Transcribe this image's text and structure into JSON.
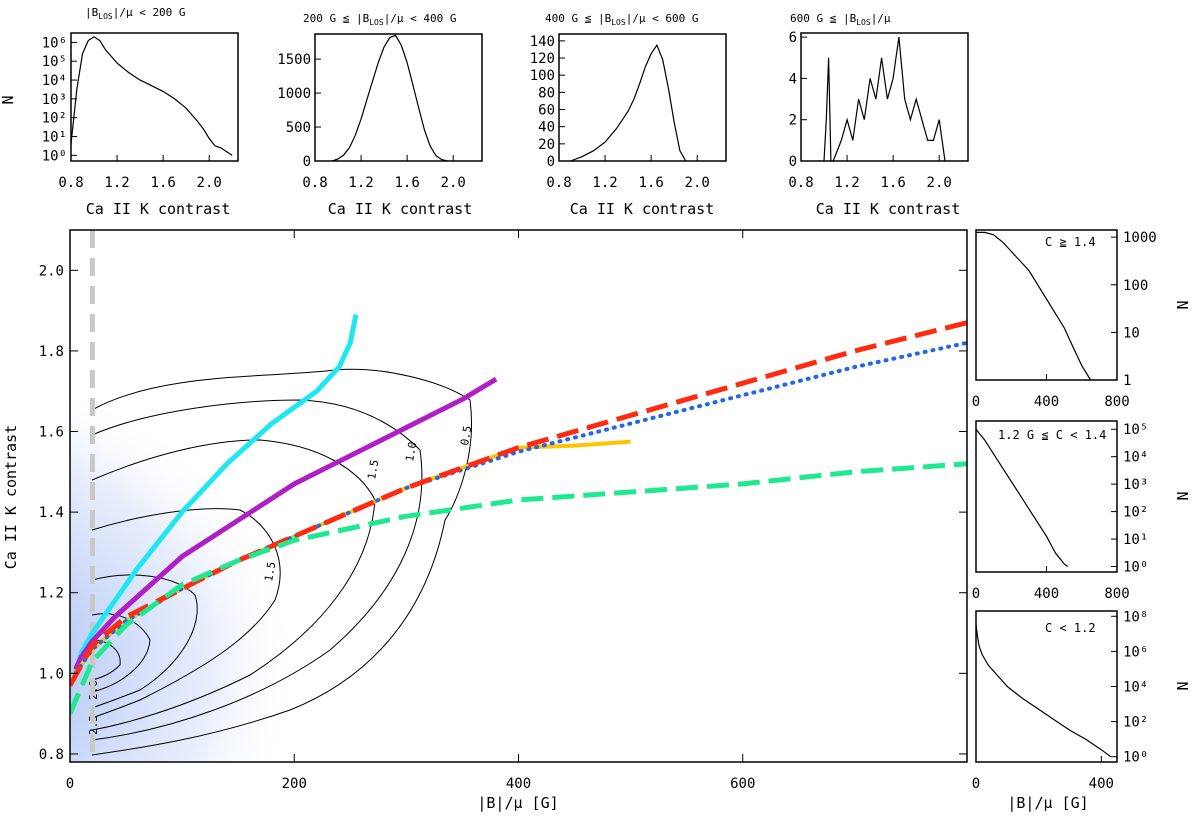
{
  "figure": {
    "top_panels": [
      {
        "title": "|B_LOS|/μ < 200 G",
        "title_parts": {
          "a": "|B",
          "sub": "LOS",
          "b": "|/μ < 200 G"
        },
        "xlabel": "Ca II K contrast",
        "ylabel": "N",
        "xlim": [
          0.8,
          2.25
        ],
        "xticks": [
          "0.8",
          "1.2",
          "1.6",
          "2.0"
        ],
        "yscale": "log",
        "yticks": [
          "10⁰",
          "10¹",
          "10²",
          "10³",
          "10⁴",
          "10⁵",
          "10⁶"
        ],
        "ylim_log": [
          -0.3,
          6.5
        ],
        "series": {
          "x": [
            0.8,
            0.85,
            0.9,
            0.95,
            1.0,
            1.05,
            1.1,
            1.2,
            1.3,
            1.4,
            1.5,
            1.6,
            1.7,
            1.8,
            1.9,
            1.95,
            2.0,
            2.05,
            2.1,
            2.15,
            2.2
          ],
          "log_n": [
            0.6,
            3.5,
            5.4,
            6.1,
            6.3,
            6.1,
            5.6,
            4.9,
            4.4,
            4.0,
            3.7,
            3.4,
            3.0,
            2.5,
            1.8,
            1.4,
            0.9,
            0.5,
            0.4,
            0.2,
            0.0
          ]
        }
      },
      {
        "title": "200 G ≤ |B_LOS|/μ < 400 G",
        "title_parts": {
          "a": "200 G ≦ |B",
          "sub": "LOS",
          "b": "|/μ < 400 G"
        },
        "xlabel": "Ca II K contrast",
        "xlim": [
          0.8,
          2.25
        ],
        "xticks": [
          "0.8",
          "1.2",
          "1.6",
          "2.0"
        ],
        "yscale": "linear",
        "yticks": [
          "0",
          "500",
          "1000",
          "1500"
        ],
        "ylim": [
          0,
          1870
        ],
        "series": {
          "x": [
            0.95,
            1.0,
            1.05,
            1.1,
            1.15,
            1.2,
            1.25,
            1.3,
            1.35,
            1.4,
            1.45,
            1.5,
            1.55,
            1.6,
            1.65,
            1.7,
            1.75,
            1.8,
            1.85,
            1.9,
            1.95
          ],
          "n": [
            0,
            30,
            90,
            200,
            380,
            620,
            900,
            1180,
            1450,
            1680,
            1820,
            1850,
            1700,
            1450,
            1120,
            780,
            460,
            220,
            80,
            20,
            0
          ]
        }
      },
      {
        "title": "400 G ≤ |B_LOS|/μ < 600 G",
        "title_parts": {
          "a": "400 G ≦ |B",
          "sub": "LOS",
          "b": "|/μ < 600 G"
        },
        "xlabel": "Ca II K contrast",
        "xlim": [
          0.8,
          2.25
        ],
        "xticks": [
          "0.8",
          "1.2",
          "1.6",
          "2.0"
        ],
        "yscale": "linear",
        "yticks": [
          "0",
          "20",
          "40",
          "60",
          "80",
          "100",
          "120",
          "140"
        ],
        "ylim": [
          0,
          148
        ],
        "series": {
          "x": [
            0.9,
            1.0,
            1.1,
            1.2,
            1.25,
            1.3,
            1.35,
            1.4,
            1.45,
            1.5,
            1.55,
            1.6,
            1.65,
            1.7,
            1.75,
            1.8,
            1.85,
            1.9
          ],
          "n": [
            0,
            5,
            12,
            22,
            30,
            38,
            48,
            58,
            72,
            90,
            110,
            125,
            135,
            118,
            85,
            45,
            12,
            0
          ]
        }
      },
      {
        "title": "600 G ≤ |B_LOS|/μ",
        "title_parts": {
          "a": "600 G ≦ |B",
          "sub": "LOS",
          "b": "|/μ"
        },
        "xlabel": "Ca II K contrast",
        "xlim": [
          0.8,
          2.25
        ],
        "xticks": [
          "0.8",
          "1.2",
          "1.6",
          "2.0"
        ],
        "yscale": "linear",
        "yticks": [
          "0",
          "2",
          "4",
          "6"
        ],
        "ylim": [
          0,
          6.2
        ],
        "series": {
          "x": [
            1.0,
            1.02,
            1.04,
            1.06,
            1.08,
            1.15,
            1.2,
            1.25,
            1.3,
            1.35,
            1.4,
            1.45,
            1.5,
            1.55,
            1.6,
            1.65,
            1.7,
            1.75,
            1.8,
            1.85,
            1.9,
            1.95,
            2.0,
            2.05
          ],
          "n": [
            0,
            2,
            5,
            0,
            0,
            1,
            2,
            1,
            3,
            2,
            4,
            3,
            5,
            3,
            4,
            6,
            3,
            2,
            3,
            2,
            1,
            1,
            2,
            0
          ]
        }
      }
    ],
    "main": {
      "xlabel": "|B|/μ [G]",
      "ylabel": "Ca II K contrast",
      "xlim": [
        0,
        800
      ],
      "ylim": [
        0.78,
        2.1
      ],
      "xticks": [
        "0",
        "200",
        "400",
        "600"
      ],
      "yticks": [
        "0.8",
        "1.0",
        "1.2",
        "1.4",
        "1.6",
        "1.8",
        "2.0"
      ],
      "vline_x": 20,
      "contour_labels": [
        "1.5",
        "1.5",
        "1.0",
        "0.5",
        "2.0",
        "2.5"
      ],
      "series": [
        {
          "name": "cyan",
          "color": "#1ee6f2",
          "dash": "solid",
          "width": 5,
          "x": [
            5,
            10,
            20,
            40,
            60,
            80,
            100,
            120,
            140,
            160,
            180,
            200,
            220,
            240,
            250,
            255
          ],
          "y": [
            1.0,
            1.05,
            1.1,
            1.18,
            1.26,
            1.33,
            1.4,
            1.46,
            1.52,
            1.57,
            1.62,
            1.66,
            1.7,
            1.76,
            1.82,
            1.89
          ]
        },
        {
          "name": "magenta",
          "color": "#b01fc4",
          "dash": "solid",
          "width": 5,
          "x": [
            5,
            10,
            20,
            40,
            60,
            80,
            100,
            150,
            200,
            250,
            300,
            350,
            380
          ],
          "y": [
            1.01,
            1.04,
            1.08,
            1.14,
            1.19,
            1.24,
            1.29,
            1.38,
            1.47,
            1.54,
            1.61,
            1.68,
            1.73
          ]
        },
        {
          "name": "yellow",
          "color": "#ffc400",
          "dash": "solid",
          "width": 4,
          "x": [
            5,
            20,
            50,
            100,
            150,
            200,
            250,
            300,
            350,
            380,
            400,
            450,
            500
          ],
          "y": [
            1.0,
            1.06,
            1.13,
            1.21,
            1.28,
            1.34,
            1.4,
            1.46,
            1.51,
            1.54,
            1.56,
            1.565,
            1.575
          ]
        },
        {
          "name": "blue-dotted",
          "color": "#2266ee",
          "dash": "dotted",
          "width": 4,
          "x": [
            5,
            20,
            50,
            100,
            150,
            200,
            300,
            400,
            500,
            600,
            700,
            800
          ],
          "y": [
            1.0,
            1.06,
            1.13,
            1.21,
            1.28,
            1.34,
            1.46,
            1.55,
            1.62,
            1.69,
            1.76,
            1.82
          ]
        },
        {
          "name": "red-dashed",
          "color": "#ff2a10",
          "dash": "dashed",
          "width": 5,
          "x": [
            0,
            20,
            50,
            100,
            150,
            200,
            300,
            400,
            500,
            600,
            700,
            800
          ],
          "y": [
            0.97,
            1.07,
            1.14,
            1.21,
            1.28,
            1.34,
            1.46,
            1.56,
            1.64,
            1.72,
            1.8,
            1.87
          ]
        },
        {
          "name": "green-dashed",
          "color": "#1ee890",
          "dash": "dashed",
          "width": 5,
          "x": [
            0,
            20,
            50,
            100,
            150,
            200,
            300,
            400,
            500,
            600,
            700,
            800
          ],
          "y": [
            0.9,
            1.03,
            1.12,
            1.22,
            1.28,
            1.33,
            1.39,
            1.43,
            1.45,
            1.47,
            1.5,
            1.52
          ]
        }
      ]
    },
    "side_panels": [
      {
        "label": "C ≧ 1.4",
        "ylabel": "N",
        "xlim": [
          0,
          800
        ],
        "xticks": [
          "0",
          "400",
          "800"
        ],
        "yscale": "log",
        "yticks": [
          "1",
          "10",
          "100",
          "1000"
        ],
        "ylim_log": [
          0,
          3.15
        ],
        "series": {
          "x": [
            0,
            50,
            100,
            150,
            200,
            250,
            300,
            350,
            400,
            450,
            500,
            550,
            600,
            650
          ],
          "log_n": [
            3.1,
            3.1,
            3.05,
            2.9,
            2.7,
            2.5,
            2.3,
            2.0,
            1.7,
            1.4,
            1.1,
            0.7,
            0.3,
            0.0
          ]
        }
      },
      {
        "label": "1.2 G ≦ C < 1.4",
        "ylabel": "N",
        "xlim": [
          0,
          800
        ],
        "xticks": [
          "0",
          "400",
          "800"
        ],
        "yscale": "log",
        "yticks": [
          "10⁰",
          "10¹",
          "10²",
          "10³",
          "10⁴",
          "10⁵"
        ],
        "ylim_log": [
          -0.2,
          5.3
        ],
        "series": {
          "x": [
            0,
            25,
            50,
            100,
            150,
            200,
            250,
            300,
            350,
            400,
            450,
            500,
            520
          ],
          "log_n": [
            5.0,
            4.8,
            4.6,
            4.1,
            3.6,
            3.1,
            2.6,
            2.1,
            1.6,
            1.1,
            0.5,
            0.1,
            0.0
          ]
        }
      },
      {
        "label": "C < 1.2",
        "ylabel": "N",
        "xlim": [
          0,
          450
        ],
        "xticks": [
          "0",
          "400"
        ],
        "yscale": "log",
        "yticks": [
          "10⁰",
          "10²",
          "10⁴",
          "10⁶",
          "10⁸"
        ],
        "ylim_log": [
          -0.3,
          8.3
        ],
        "series": {
          "x": [
            0,
            5,
            10,
            20,
            40,
            60,
            80,
            100,
            150,
            200,
            250,
            300,
            350,
            400,
            430
          ],
          "log_n": [
            7.5,
            6.8,
            6.3,
            5.8,
            5.2,
            4.8,
            4.4,
            4.0,
            3.3,
            2.7,
            2.1,
            1.5,
            1.0,
            0.4,
            0.0
          ]
        }
      }
    ],
    "bottom_right_xlabel": "|B|/μ [G]"
  },
  "chart_data": {
    "type": "line",
    "title": "",
    "xlabel": "|B|/μ [G]",
    "ylabel": "Ca II K contrast",
    "xlim": [
      0,
      800
    ],
    "ylim": [
      0.78,
      2.1
    ],
    "series": [
      {
        "name": "cyan",
        "x": [
          5,
          10,
          20,
          40,
          60,
          80,
          100,
          120,
          140,
          160,
          180,
          200,
          220,
          240,
          250,
          255
        ],
        "y": [
          1.0,
          1.05,
          1.1,
          1.18,
          1.26,
          1.33,
          1.4,
          1.46,
          1.52,
          1.57,
          1.62,
          1.66,
          1.7,
          1.76,
          1.82,
          1.89
        ]
      },
      {
        "name": "magenta",
        "x": [
          5,
          10,
          20,
          40,
          60,
          80,
          100,
          150,
          200,
          250,
          300,
          350,
          380
        ],
        "y": [
          1.01,
          1.04,
          1.08,
          1.14,
          1.19,
          1.24,
          1.29,
          1.38,
          1.47,
          1.54,
          1.61,
          1.68,
          1.73
        ]
      },
      {
        "name": "yellow",
        "x": [
          5,
          20,
          50,
          100,
          150,
          200,
          250,
          300,
          350,
          380,
          400,
          450,
          500
        ],
        "y": [
          1.0,
          1.06,
          1.13,
          1.21,
          1.28,
          1.34,
          1.4,
          1.46,
          1.51,
          1.54,
          1.56,
          1.565,
          1.575
        ]
      },
      {
        "name": "blue-dotted",
        "x": [
          5,
          20,
          50,
          100,
          150,
          200,
          300,
          400,
          500,
          600,
          700,
          800
        ],
        "y": [
          1.0,
          1.06,
          1.13,
          1.21,
          1.28,
          1.34,
          1.46,
          1.55,
          1.62,
          1.69,
          1.76,
          1.82
        ]
      },
      {
        "name": "red-dashed",
        "x": [
          0,
          20,
          50,
          100,
          150,
          200,
          300,
          400,
          500,
          600,
          700,
          800
        ],
        "y": [
          0.97,
          1.07,
          1.14,
          1.21,
          1.28,
          1.34,
          1.46,
          1.56,
          1.64,
          1.72,
          1.8,
          1.87
        ]
      },
      {
        "name": "green-dashed",
        "x": [
          0,
          20,
          50,
          100,
          150,
          200,
          300,
          400,
          500,
          600,
          700,
          800
        ],
        "y": [
          0.9,
          1.03,
          1.12,
          1.22,
          1.28,
          1.33,
          1.39,
          1.43,
          1.45,
          1.47,
          1.5,
          1.52
        ]
      }
    ]
  }
}
